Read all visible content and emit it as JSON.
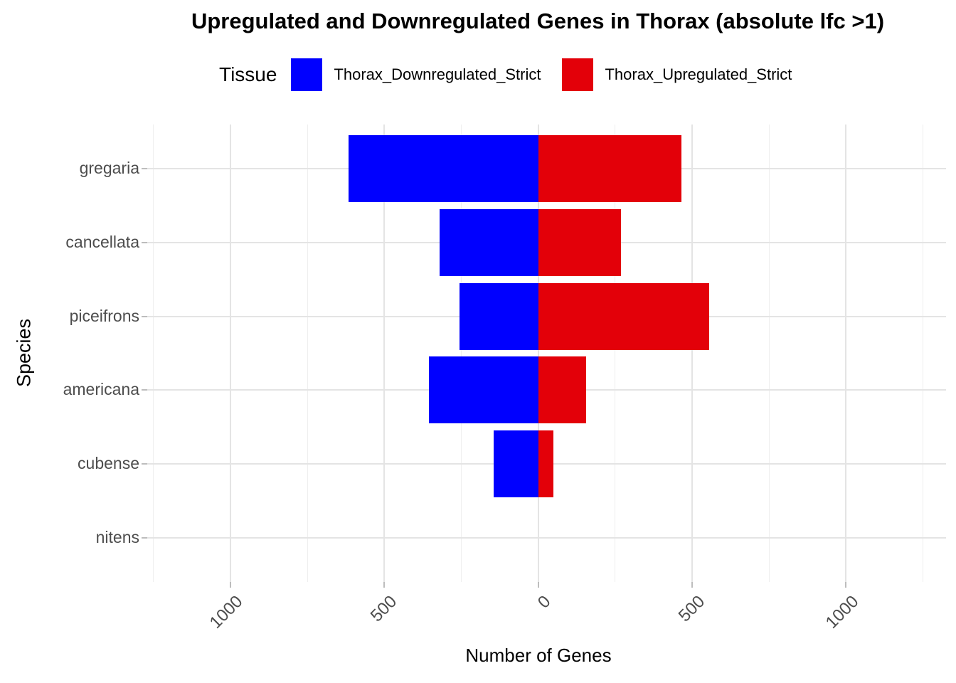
{
  "title": "Upregulated and Downregulated Genes in Thorax (absolute lfc >1)",
  "legend": {
    "title": "Tissue",
    "items": [
      {
        "label": "Thorax_Downregulated_Strict",
        "color": "#0000ff"
      },
      {
        "label": "Thorax_Upregulated_Strict",
        "color": "#e30009"
      }
    ]
  },
  "chart_data": {
    "type": "bar",
    "orientation": "horizontal-diverging",
    "title": "Upregulated and Downregulated Genes in Thorax (absolute lfc >1)",
    "xlabel": "Number of Genes",
    "ylabel": "Species",
    "categories": [
      "gregaria",
      "cancellata",
      "piceifrons",
      "americana",
      "cubense",
      "nitens"
    ],
    "series": [
      {
        "name": "Thorax_Downregulated_Strict",
        "color": "#0000ff",
        "direction": "negative",
        "values": [
          615,
          320,
          255,
          355,
          145,
          0
        ]
      },
      {
        "name": "Thorax_Upregulated_Strict",
        "color": "#e30009",
        "direction": "positive",
        "values": [
          465,
          270,
          555,
          155,
          50,
          0
        ]
      }
    ],
    "xlim": [
      -1270,
      1325
    ],
    "x_ticks": [
      {
        "value": -1000,
        "label": "1000"
      },
      {
        "value": -500,
        "label": "500"
      },
      {
        "value": 0,
        "label": "0"
      },
      {
        "value": 500,
        "label": "500"
      },
      {
        "value": 1000,
        "label": "1000"
      }
    ],
    "x_minor_step": 250,
    "grid": {
      "x_major": true,
      "x_minor": true,
      "y_major": true,
      "y_minor": false
    },
    "legend_position": "top",
    "background": "#ffffff"
  }
}
